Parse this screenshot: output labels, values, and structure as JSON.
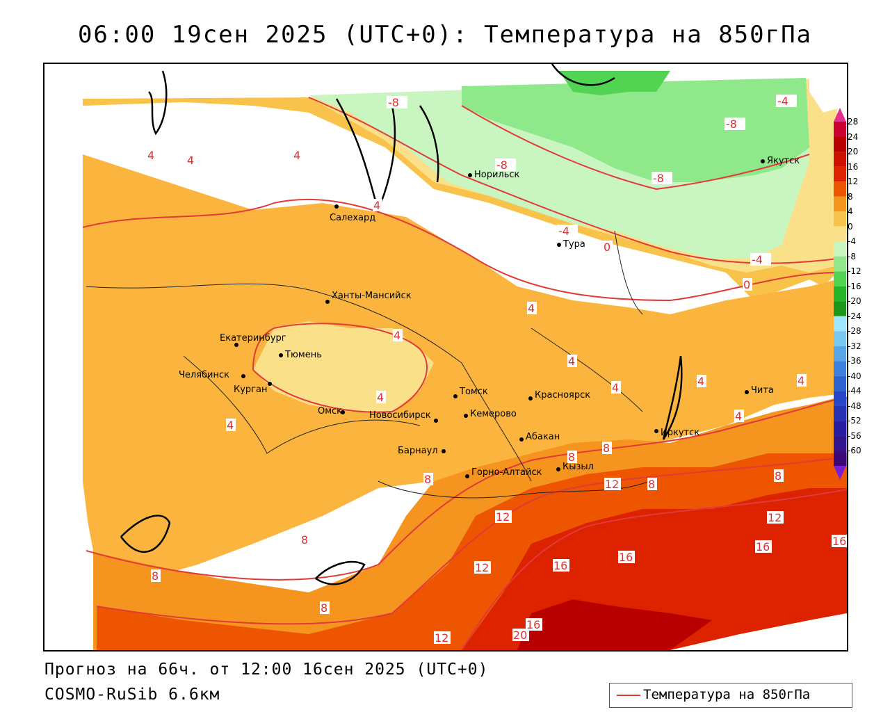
{
  "title": "06:00 19сен 2025 (UTC+0): Температура на 850гПа",
  "footer": {
    "forecast": "Прогноз на 66ч. от 12:00 16сен 2025 (UTC+0)",
    "model": "COSMO-RuSib 6.6км"
  },
  "legend": {
    "line_label": "Температура на 850гПа",
    "line_color": "#e03a3a",
    "scale_values": [
      "28",
      "24",
      "20",
      "16",
      "12",
      "8",
      "4",
      "0",
      "-4",
      "-8",
      "-12",
      "-16",
      "-20",
      "-24",
      "-28",
      "-32",
      "-36",
      "-40",
      "-44",
      "-48",
      "-52",
      "-56",
      "-60"
    ],
    "scale_colors": [
      "#cc0033",
      "#b80000",
      "#cc1100",
      "#dd2200",
      "#ee5500",
      "#f5941e",
      "#f9c24a",
      "#fbe08a",
      "#c9f5c0",
      "#8fe88a",
      "#52d352",
      "#28b428",
      "#1a961a",
      "#a0e6ff",
      "#78c8f0",
      "#5aa5e6",
      "#3c82dc",
      "#2d64d2",
      "#2846c8",
      "#2832b4",
      "#281ea0",
      "#32148c",
      "#3c0a78"
    ]
  },
  "cities": [
    {
      "name": "Норильск"
    },
    {
      "name": "Якутск"
    },
    {
      "name": "Салехард"
    },
    {
      "name": "Тура"
    },
    {
      "name": "Ханты-Мансийск"
    },
    {
      "name": "Екатеринбург"
    },
    {
      "name": "Тюмень"
    },
    {
      "name": "Челябинск"
    },
    {
      "name": "Курган"
    },
    {
      "name": "Омск"
    },
    {
      "name": "Новосибирск"
    },
    {
      "name": "Томск"
    },
    {
      "name": "Кемерово"
    },
    {
      "name": "Красноярск"
    },
    {
      "name": "Барнаул"
    },
    {
      "name": "Абакан"
    },
    {
      "name": "Горно-Алтайск"
    },
    {
      "name": "Кызыл"
    },
    {
      "name": "Иркутск"
    },
    {
      "name": "Чита"
    }
  ],
  "isotherm_labels": [
    "-8",
    "-8",
    "-8",
    "-8",
    "-4",
    "-4",
    "-4",
    "0",
    "0",
    "4",
    "4",
    "4",
    "4",
    "4",
    "4",
    "4",
    "4",
    "4",
    "4",
    "4",
    "4",
    "4",
    "8",
    "8",
    "8",
    "8",
    "8",
    "8",
    "8",
    "8",
    "12",
    "12",
    "12",
    "12",
    "12",
    "16",
    "16",
    "16",
    "16",
    "16",
    "20"
  ]
}
